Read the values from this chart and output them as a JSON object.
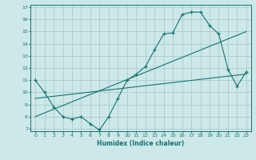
{
  "bg_color": "#cde8e8",
  "grid_color": "#aacccc",
  "line_color": "#1a7070",
  "xlabel": "Humidex (Indice chaleur)",
  "xlim": [
    -0.5,
    23.5
  ],
  "ylim": [
    6.8,
    17.2
  ],
  "xticks": [
    0,
    1,
    2,
    3,
    4,
    5,
    6,
    7,
    8,
    9,
    10,
    11,
    12,
    13,
    14,
    15,
    16,
    17,
    18,
    19,
    20,
    21,
    22,
    23
  ],
  "yticks": [
    7,
    8,
    9,
    10,
    11,
    12,
    13,
    14,
    15,
    16,
    17
  ],
  "line1_x": [
    0,
    1,
    2,
    3,
    4,
    5,
    6,
    7,
    8,
    9,
    10,
    11,
    12,
    13,
    14,
    15,
    16,
    17,
    18,
    19,
    20,
    21,
    22,
    23
  ],
  "line1_y": [
    11.0,
    10.0,
    8.8,
    8.0,
    7.8,
    8.0,
    7.4,
    6.9,
    8.0,
    9.5,
    11.0,
    11.5,
    12.1,
    13.5,
    14.8,
    14.9,
    16.4,
    16.6,
    16.6,
    15.5,
    14.8,
    11.9,
    10.5,
    11.7
  ],
  "line2_x": [
    0,
    23
  ],
  "line2_y": [
    9.5,
    11.5
  ],
  "line3_x": [
    0,
    23
  ],
  "line3_y": [
    8.0,
    15.0
  ]
}
